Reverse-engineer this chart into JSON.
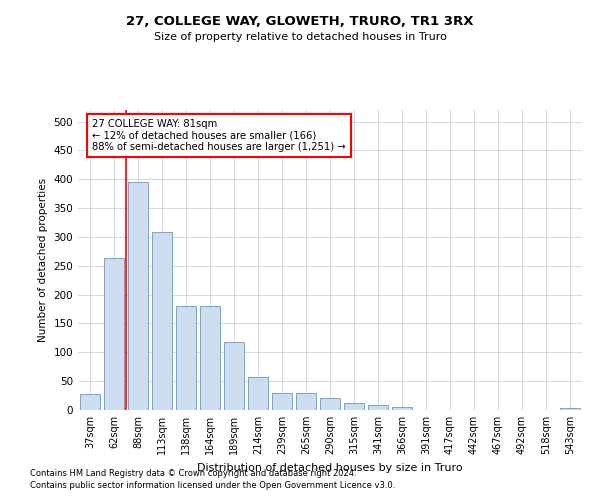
{
  "title": "27, COLLEGE WAY, GLOWETH, TRURO, TR1 3RX",
  "subtitle": "Size of property relative to detached houses in Truro",
  "xlabel": "Distribution of detached houses by size in Truro",
  "ylabel": "Number of detached properties",
  "categories": [
    "37sqm",
    "62sqm",
    "88sqm",
    "113sqm",
    "138sqm",
    "164sqm",
    "189sqm",
    "214sqm",
    "239sqm",
    "265sqm",
    "290sqm",
    "315sqm",
    "341sqm",
    "366sqm",
    "391sqm",
    "417sqm",
    "442sqm",
    "467sqm",
    "492sqm",
    "518sqm",
    "543sqm"
  ],
  "values": [
    27,
    263,
    395,
    308,
    180,
    180,
    118,
    57,
    30,
    30,
    20,
    13,
    8,
    5,
    0,
    0,
    0,
    0,
    0,
    0,
    3
  ],
  "bar_color": "#ccddf0",
  "bar_edge_color": "#6699cc",
  "grid_color": "#d0d8e8",
  "background_color": "#ffffff",
  "annotation_text": "27 COLLEGE WAY: 81sqm\n← 12% of detached houses are smaller (166)\n88% of semi-detached houses are larger (1,251) →",
  "vline_x": 1.5,
  "ylim": [
    0,
    520
  ],
  "yticks": [
    0,
    50,
    100,
    150,
    200,
    250,
    300,
    350,
    400,
    450,
    500
  ],
  "footer_line1": "Contains HM Land Registry data © Crown copyright and database right 2024.",
  "footer_line2": "Contains public sector information licensed under the Open Government Licence v3.0."
}
